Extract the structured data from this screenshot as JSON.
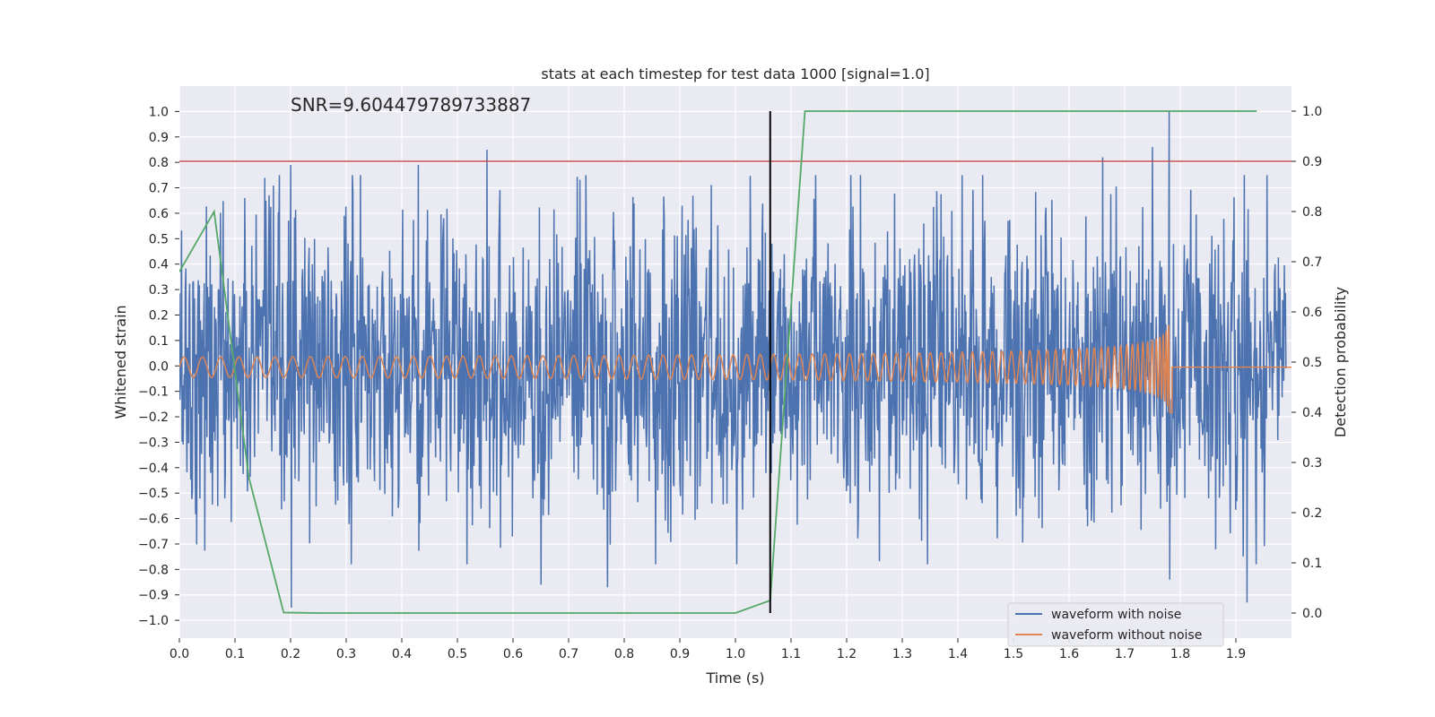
{
  "chart_data": {
    "type": "line",
    "title": "stats at each timestep for test data 1000 [signal=1.0]",
    "annotation": "SNR=9.604479789733887",
    "xlabel": "Time (s)",
    "ylabel": "Whitened strain",
    "y2label": "Detection probability",
    "xlim": [
      0.0,
      2.0
    ],
    "ylim": [
      -1.07,
      1.1
    ],
    "y2lim": [
      -0.05,
      1.05
    ],
    "xticks": [
      0.0,
      0.1,
      0.2,
      0.3,
      0.4,
      0.5,
      0.6,
      0.7,
      0.8,
      0.9,
      1.0,
      1.1,
      1.2,
      1.3,
      1.4,
      1.5,
      1.6,
      1.7,
      1.8,
      1.9
    ],
    "xtick_labels": [
      "0.0",
      "0.1",
      "0.2",
      "0.3",
      "0.4",
      "0.5",
      "0.6",
      "0.7",
      "0.8",
      "0.9",
      "1.0",
      "1.1",
      "1.2",
      "1.3",
      "1.4",
      "1.5",
      "1.6",
      "1.7",
      "1.8",
      "1.9"
    ],
    "yticks": [
      -1.0,
      -0.9,
      -0.8,
      -0.7,
      -0.6,
      -0.5,
      -0.4,
      -0.3,
      -0.2,
      -0.1,
      0.0,
      0.1,
      0.2,
      0.3,
      0.4,
      0.5,
      0.6,
      0.7,
      0.8,
      0.9,
      1.0
    ],
    "ytick_labels": [
      "−1.0",
      "−0.9",
      "−0.8",
      "−0.7",
      "−0.6",
      "−0.5",
      "−0.4",
      "−0.3",
      "−0.2",
      "−0.1",
      "0.0",
      "0.1",
      "0.2",
      "0.3",
      "0.4",
      "0.5",
      "0.6",
      "0.7",
      "0.8",
      "0.9",
      "1.0"
    ],
    "y2ticks": [
      0.0,
      0.1,
      0.2,
      0.3,
      0.4,
      0.5,
      0.6,
      0.7,
      0.8,
      0.9,
      1.0
    ],
    "y2tick_labels": [
      "0.0",
      "0.1",
      "0.2",
      "0.3",
      "0.4",
      "0.5",
      "0.6",
      "0.7",
      "0.8",
      "0.9",
      "1.0"
    ],
    "grid": true,
    "legend_position": "bottom-right",
    "colors": {
      "noise": "#4c72b0",
      "clean": "#dd8452",
      "probability": "#55a868",
      "threshold": "#c44e52",
      "marker": "#000000",
      "background": "#eaeaf2",
      "grid": "#ffffff"
    },
    "series": [
      {
        "name": "waveform with noise",
        "kind": "noise",
        "t_start": 0.0,
        "t_end": 1.99,
        "samples": 2048,
        "std": 0.3,
        "peaks": [
          {
            "x": 0.2,
            "y": 0.79
          },
          {
            "x": 0.2,
            "y": -0.95
          },
          {
            "x": 0.553,
            "y": 0.85
          },
          {
            "x": 0.43,
            "y": 0.79
          },
          {
            "x": 1.78,
            "y": 1.0
          },
          {
            "x": 1.78,
            "y": -0.84
          },
          {
            "x": 1.66,
            "y": 0.82
          },
          {
            "x": 1.75,
            "y": 0.86
          },
          {
            "x": 1.92,
            "y": -0.93
          },
          {
            "x": 0.65,
            "y": -0.86
          },
          {
            "x": 0.77,
            "y": -0.87
          }
        ]
      },
      {
        "name": "waveform without noise",
        "kind": "chirp",
        "t_start": 0.0,
        "t_merger": 1.785,
        "t_end": 2.0,
        "f0": 30,
        "amp0": 0.04,
        "amp_merger": 0.3,
        "offset": -0.005,
        "post_value": -0.005
      },
      {
        "name": "",
        "kind": "probability",
        "x": [
          0.0,
          0.0625,
          0.125,
          0.1875,
          0.25,
          0.3125,
          0.375,
          0.4375,
          0.5,
          0.5625,
          0.625,
          0.6875,
          0.75,
          0.8125,
          0.875,
          0.9375,
          1.0,
          1.0625,
          1.125,
          1.1875,
          1.25,
          1.3125,
          1.375,
          1.4375,
          1.5,
          1.5625,
          1.625,
          1.6875,
          1.75,
          1.8125,
          1.875,
          1.9375
        ],
        "values": [
          0.68,
          0.8,
          0.27,
          0.001,
          0.0,
          0.0,
          0.0,
          0.0,
          0.0,
          0.0,
          0.0,
          0.0,
          0.0,
          0.0,
          0.0,
          0.0,
          0.0,
          0.025,
          1.0,
          1.0,
          1.0,
          1.0,
          1.0,
          1.0,
          1.0,
          1.0,
          1.0,
          1.0,
          1.0,
          1.0,
          1.0,
          1.0
        ]
      }
    ],
    "hline_threshold_y2": 0.9,
    "vline_x": 1.0625,
    "vline_y2_range": [
      0.0,
      1.0
    ]
  }
}
